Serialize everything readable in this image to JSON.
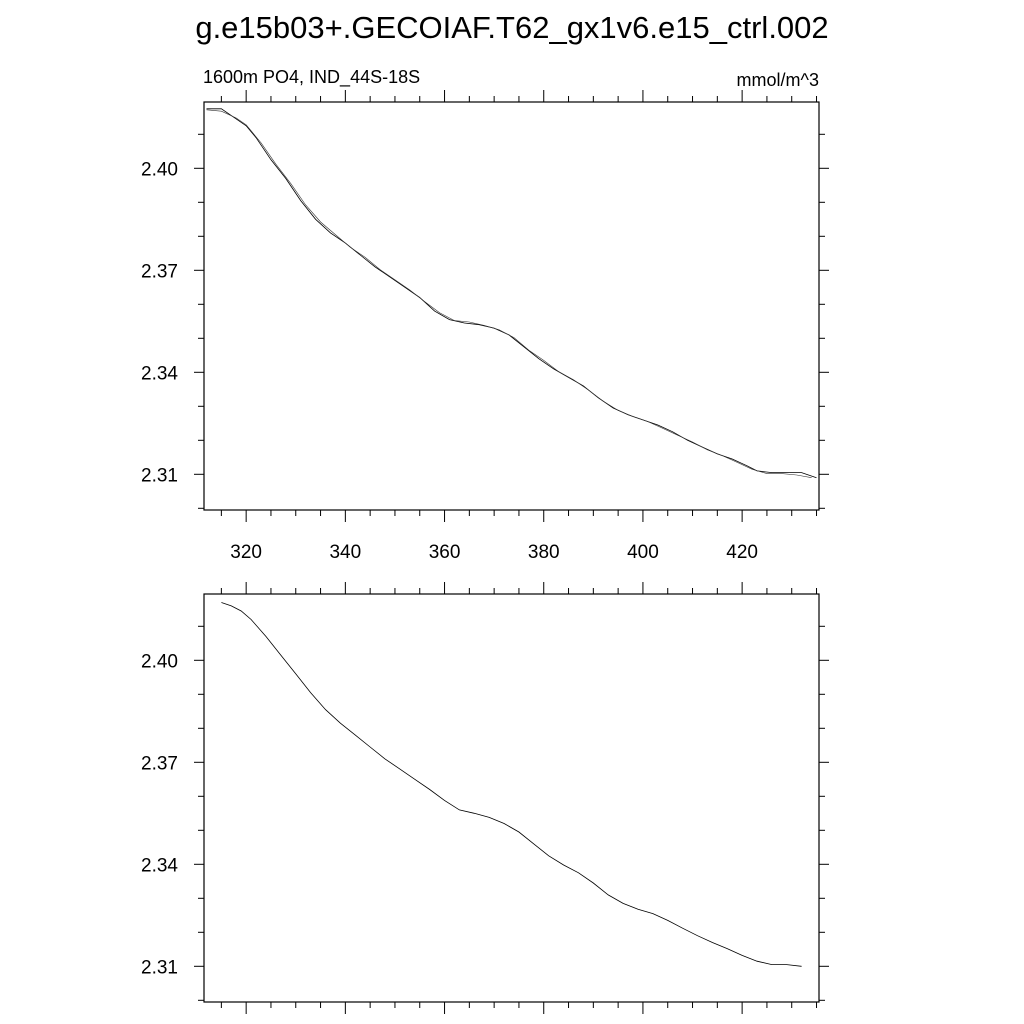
{
  "title": "g.e15b03+.GECOIAF.T62_gx1v6.e15_ctrl.002",
  "chart_data": [
    {
      "type": "line",
      "left_label": "1600m PO4, IND_44S-18S",
      "right_label": "mmol/m^3",
      "xlim": [
        311.5,
        435.5
      ],
      "ylim": [
        2.2995,
        2.4195
      ],
      "x_ticks": [
        320,
        340,
        360,
        380,
        400,
        420
      ],
      "x_tick_labels": [
        "320",
        "340",
        "360",
        "380",
        "400",
        "420"
      ],
      "y_ticks": [
        2.31,
        2.34,
        2.37,
        2.4
      ],
      "y_tick_labels": [
        "2.31",
        "2.34",
        "2.37",
        "2.40"
      ],
      "series": [
        {
          "values_x": [
            312,
            315,
            317,
            320,
            322,
            325,
            328,
            331,
            334,
            337,
            340,
            343,
            346,
            349,
            352,
            355,
            358,
            361,
            364,
            367,
            370,
            373,
            376,
            379,
            382,
            385,
            388,
            391,
            394,
            397,
            400,
            403,
            406,
            409,
            412,
            415,
            418,
            421,
            423,
            426,
            429,
            432,
            435
          ],
          "values_y": [
            2.4175,
            2.4175,
            2.4155,
            2.4125,
            2.409,
            2.4025,
            2.397,
            2.3905,
            2.385,
            2.381,
            2.378,
            2.3745,
            2.371,
            2.368,
            2.365,
            2.362,
            2.358,
            2.3555,
            2.3545,
            2.354,
            2.353,
            2.351,
            2.3475,
            2.344,
            2.341,
            2.3385,
            2.336,
            2.3325,
            2.3295,
            2.3275,
            2.326,
            2.3245,
            2.3225,
            2.32,
            2.318,
            2.316,
            2.3145,
            2.3125,
            2.311,
            2.3105,
            2.3105,
            2.3105,
            2.309
          ]
        },
        {
          "values_x": [
            312,
            315,
            318,
            320,
            323,
            326,
            329,
            332,
            335,
            338,
            341,
            344,
            347,
            350,
            353,
            356,
            359,
            362,
            365,
            368,
            371,
            374,
            377,
            380,
            383,
            386,
            389,
            392,
            395,
            398,
            401,
            404,
            407,
            410,
            413,
            416,
            419,
            422,
            425,
            428,
            431,
            434
          ],
          "values_y": [
            2.4172,
            2.4168,
            2.4148,
            2.4128,
            2.4075,
            2.4012,
            2.3955,
            2.3892,
            2.3842,
            2.3805,
            2.3768,
            2.3738,
            2.3702,
            2.3672,
            2.3642,
            2.3608,
            2.3575,
            2.3552,
            2.3548,
            2.3538,
            2.3525,
            2.3502,
            2.3465,
            2.3435,
            2.3402,
            2.3378,
            2.3348,
            2.3315,
            2.3288,
            2.327,
            2.3255,
            2.3235,
            2.3215,
            2.3195,
            2.3172,
            2.3155,
            2.3135,
            2.3115,
            2.3102,
            2.3102,
            2.3098,
            2.309
          ]
        }
      ]
    },
    {
      "type": "line",
      "xlim": [
        311.5,
        435.5
      ],
      "ylim": [
        2.2995,
        2.4195
      ],
      "x_ticks": [
        320,
        340,
        360,
        380,
        400,
        420
      ],
      "y_ticks": [
        2.31,
        2.34,
        2.37,
        2.4
      ],
      "y_tick_labels": [
        "2.31",
        "2.34",
        "2.37",
        "2.40"
      ],
      "series": [
        {
          "values_x": [
            315,
            317,
            319,
            321,
            324,
            327,
            330,
            333,
            336,
            339,
            342,
            345,
            348,
            351,
            354,
            357,
            360,
            363,
            366,
            369,
            372,
            375,
            378,
            381,
            384,
            387,
            390,
            393,
            396,
            399,
            402,
            405,
            408,
            411,
            414,
            417,
            420,
            423,
            426,
            429,
            432
          ],
          "values_y": [
            2.417,
            2.416,
            2.4145,
            2.412,
            2.407,
            2.4015,
            2.396,
            2.3905,
            2.3855,
            2.3815,
            2.378,
            2.3745,
            2.371,
            2.368,
            2.365,
            2.362,
            2.3588,
            2.356,
            2.355,
            2.3538,
            2.352,
            2.3495,
            2.346,
            2.3425,
            2.3398,
            2.3375,
            2.3345,
            2.331,
            2.3285,
            2.3268,
            2.3255,
            2.3235,
            2.3212,
            2.319,
            2.317,
            2.3152,
            2.3132,
            2.3115,
            2.3105,
            2.3105,
            2.31
          ]
        }
      ]
    }
  ]
}
